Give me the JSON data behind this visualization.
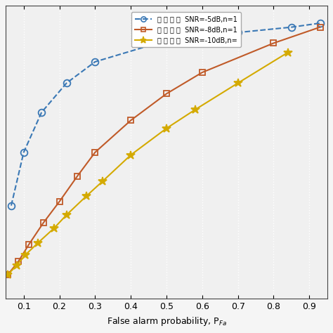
{
  "xlabel": "False alarm probability, P",
  "xlim": [
    0.05,
    0.95
  ],
  "ylim": [
    -0.05,
    1.05
  ],
  "xticks": [
    0.1,
    0.2,
    0.3,
    0.4,
    0.5,
    0.6,
    0.7,
    0.8,
    0.9
  ],
  "yticks": [],
  "series": [
    {
      "label": "区 割 划 划  SNR=-5dB,n=1",
      "color": "#3a78b5",
      "linestyle": "--",
      "marker": "o",
      "markersize": 7,
      "x": [
        0.065,
        0.1,
        0.15,
        0.22,
        0.3,
        0.5,
        0.7,
        0.85,
        0.93
      ],
      "y": [
        0.3,
        0.5,
        0.65,
        0.76,
        0.84,
        0.92,
        0.95,
        0.97,
        0.985
      ]
    },
    {
      "label": "区 割 划 划  SNR=-8dB,n=1",
      "color": "#c05a28",
      "linestyle": "-",
      "marker": "s",
      "markersize": 6,
      "x": [
        0.055,
        0.085,
        0.115,
        0.155,
        0.2,
        0.25,
        0.3,
        0.4,
        0.5,
        0.6,
        0.8,
        0.93
      ],
      "y": [
        0.04,
        0.09,
        0.155,
        0.235,
        0.315,
        0.41,
        0.5,
        0.62,
        0.72,
        0.8,
        0.91,
        0.97
      ]
    },
    {
      "label": "区 割 划 划  SNR=-10dB,n=",
      "color": "#d4aa00",
      "linestyle": "-",
      "marker": "*",
      "markersize": 9,
      "x": [
        0.055,
        0.08,
        0.105,
        0.14,
        0.185,
        0.22,
        0.275,
        0.32,
        0.4,
        0.5,
        0.58,
        0.7,
        0.84
      ],
      "y": [
        0.04,
        0.075,
        0.115,
        0.16,
        0.215,
        0.265,
        0.335,
        0.39,
        0.49,
        0.59,
        0.66,
        0.76,
        0.875
      ]
    }
  ],
  "legend_labels": [
    "区 割 划 划  SNR=-5dB,n=1",
    "区 割 划 划  SNR=-8dB,n=1",
    "区 割 划 划  SNR=-10dB,n="
  ],
  "background_color": "#f5f5f5",
  "plot_bg_color": "#f0f0f0",
  "grid_color": "#ffffff",
  "grid_linestyle": ":",
  "grid_linewidth": 1.0
}
